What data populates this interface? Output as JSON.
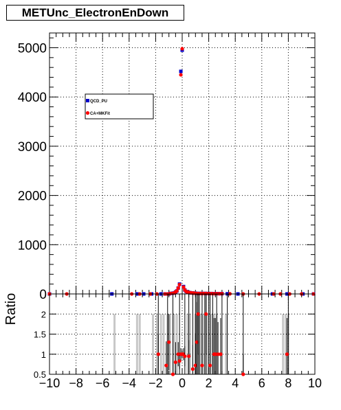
{
  "chart_data": {
    "title": "METUnc_ElectronEnDown",
    "colors": {
      "series_a": "#0000cc",
      "series_b": "#ff0000",
      "grid": "#000000"
    },
    "top": {
      "type": "scatter",
      "xlim": [
        -10,
        10
      ],
      "ylim": [
        0,
        5300
      ],
      "yticks": [
        0,
        1000,
        2000,
        3000,
        4000,
        5000
      ],
      "grid": true,
      "legend": {
        "placement": "upper-left",
        "entries": [
          "QCD_PU",
          "CA+MKFit"
        ]
      },
      "series": [
        {
          "name": "QCD_PU",
          "color": "#0000cc",
          "x": [
            -10.0,
            -5.3,
            -3.4,
            -2.9,
            -2.3,
            -1.6,
            -1.3,
            -1.0,
            -0.9,
            -0.7,
            -0.6,
            -0.5,
            -0.4,
            -0.3,
            -0.2,
            -0.1,
            0.0,
            0.1,
            0.2,
            0.3,
            0.4,
            0.5,
            0.6,
            0.7,
            0.8,
            0.9,
            1.0,
            1.2,
            1.4,
            1.6,
            1.8,
            2.0,
            2.2,
            2.4,
            2.6,
            2.8,
            3.0,
            3.4,
            4.2,
            6.8,
            7.9,
            9.1,
            9.9
          ],
          "y": [
            0,
            0,
            0,
            0,
            0,
            0,
            0,
            0,
            10,
            15,
            20,
            40,
            60,
            120,
            200,
            4520,
            4950,
            150,
            80,
            50,
            40,
            30,
            25,
            20,
            20,
            15,
            15,
            10,
            10,
            10,
            10,
            8,
            8,
            6,
            6,
            5,
            5,
            3,
            0,
            0,
            0,
            0,
            0
          ]
        },
        {
          "name": "CA+MKFit",
          "color": "#ff0000",
          "x": [
            -10.0,
            -8.7,
            -3.8,
            -3.2,
            -2.4,
            -1.9,
            -1.3,
            -1.1,
            -0.9,
            -0.7,
            -0.6,
            -0.5,
            -0.4,
            -0.3,
            -0.2,
            -0.1,
            0.0,
            0.1,
            0.2,
            0.3,
            0.4,
            0.5,
            0.6,
            0.7,
            0.8,
            0.9,
            1.0,
            1.2,
            1.4,
            1.6,
            1.8,
            2.0,
            2.2,
            2.4,
            2.6,
            2.8,
            3.0,
            3.6,
            4.6,
            5.8,
            6.9,
            7.4,
            8.1,
            9.0,
            9.9
          ],
          "y": [
            0,
            0,
            0,
            0,
            0,
            0,
            0,
            0,
            10,
            15,
            20,
            40,
            60,
            120,
            190,
            4450,
            4980,
            140,
            80,
            50,
            40,
            30,
            25,
            20,
            20,
            15,
            15,
            10,
            10,
            10,
            10,
            8,
            8,
            6,
            6,
            5,
            5,
            3,
            0,
            0,
            0,
            0,
            0,
            0,
            0
          ]
        }
      ]
    },
    "ratio": {
      "type": "scatter",
      "ylabel": "Ratio",
      "xlim": [
        -10,
        10
      ],
      "ylim": [
        0.5,
        2.5
      ],
      "yticks": [
        0.5,
        1,
        1.5,
        2
      ],
      "ytick_labels": [
        "0.5",
        "1",
        "1.5",
        "2"
      ],
      "xticks": [
        -10,
        -8,
        -6,
        -4,
        -2,
        0,
        2,
        4,
        6,
        8,
        10
      ],
      "xtick_labels": [
        "−10",
        "−8",
        "−6",
        "−4",
        "−2",
        "0",
        "2",
        "4",
        "6",
        "8",
        "10"
      ],
      "grid": true,
      "points": {
        "color": "#ff0000",
        "x": [
          -1.8,
          -1.2,
          -1.0,
          -0.7,
          -0.5,
          -0.3,
          -0.2,
          -0.1,
          0.0,
          0.1,
          0.2,
          0.5,
          0.8,
          1.0,
          1.1,
          1.2,
          1.5,
          1.8,
          2.1,
          2.4,
          2.5,
          2.7,
          2.9,
          4.6,
          7.9
        ],
        "y": [
          1.0,
          0.72,
          1.3,
          0.5,
          0.8,
          1.0,
          0.83,
          1.0,
          1.0,
          1.0,
          0.95,
          0.95,
          0.63,
          0.72,
          1.3,
          2.0,
          0.72,
          2.0,
          0.72,
          1.0,
          1.0,
          1.0,
          1.0,
          0.5,
          1.0
        ],
        "err": [
          0.5,
          0.6,
          0.7,
          0.8,
          0.5,
          0.3,
          0.2,
          0.15,
          0.1,
          0.15,
          0.25,
          0.4,
          0.6,
          0.8,
          1.0,
          1.0,
          0.8,
          1.0,
          0.7,
          0.9,
          0.9,
          0.8,
          0.9,
          0.5,
          0.9
        ]
      },
      "bands": {
        "color": "#c8c8c8",
        "x": [
          -5.1,
          -3.4,
          -3.2,
          -2.2,
          -1.9,
          -1.6,
          -1.4,
          -1.1,
          -0.9,
          -0.6,
          -0.4,
          0.4,
          0.6,
          1.0,
          1.2,
          1.4,
          1.6,
          1.9,
          2.2,
          2.4,
          2.6,
          3.3,
          7.6,
          7.8,
          8.0
        ]
      },
      "blackbars": {
        "x": [
          -1.8,
          -1.1,
          -0.7,
          -0.2,
          0.2,
          0.5,
          0.8,
          1.0,
          1.1,
          1.2,
          1.3,
          1.5,
          1.7,
          1.8,
          2.0,
          2.1,
          2.3,
          2.6,
          3.0,
          3.4,
          4.6,
          8.0
        ]
      }
    }
  }
}
